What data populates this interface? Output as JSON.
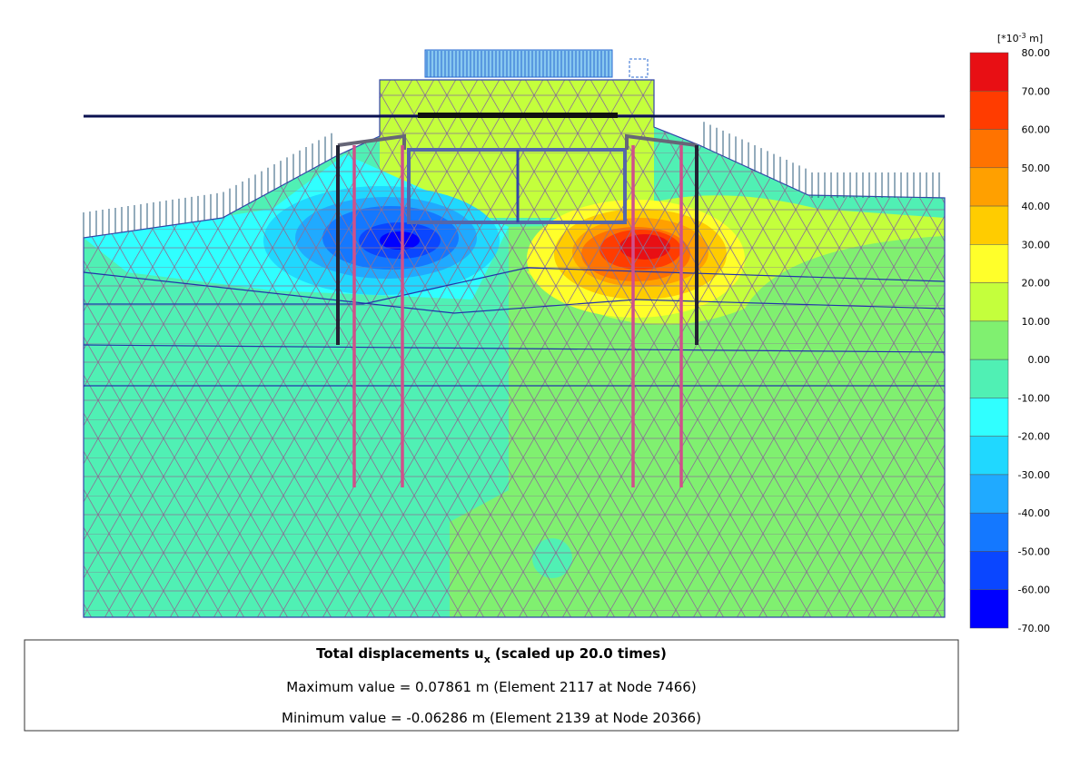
{
  "legend": {
    "unit_base": "[*10",
    "unit_exponent": "-3",
    "unit_suffix": " m]",
    "labels": [
      "80.00",
      "70.00",
      "60.00",
      "50.00",
      "40.00",
      "30.00",
      "20.00",
      "10.00",
      "0.00",
      "-10.00",
      "-20.00",
      "-30.00",
      "-40.00",
      "-50.00",
      "-60.00",
      "-70.00"
    ],
    "colors": [
      "#e80f14",
      "#ff3c00",
      "#ff7300",
      "#ffa000",
      "#ffcc00",
      "#ffff2a",
      "#c4ff3c",
      "#80f070",
      "#50f0b4",
      "#30ffff",
      "#20d8ff",
      "#20aaff",
      "#1478ff",
      "#0a46ff",
      "#0000ff"
    ]
  },
  "info": {
    "title_prefix": "Total displacements u",
    "title_subscript": "x",
    "title_suffix": " (scaled up 20.0 times)",
    "max_line": "Maximum value = 0.07861 m (Element 2117 at Node 7466)",
    "min_line": "Minimum value = -0.06286 m (Element 2139 at Node 20366)"
  }
}
